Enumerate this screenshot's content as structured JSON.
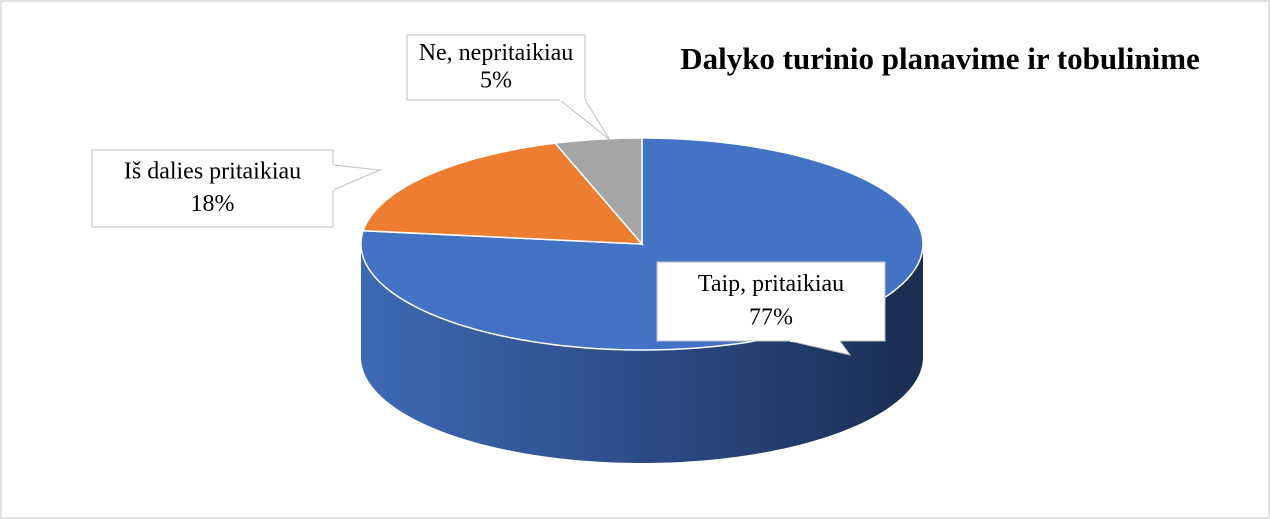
{
  "chart_data": {
    "type": "pie",
    "title": "Dalyko turinio planavime ir tobulinime",
    "categories": [
      "Taip, pritaikiau",
      "Iš dalies pritaikiau",
      "Ne, nepritaikiau"
    ],
    "values": [
      77,
      18,
      5
    ],
    "value_labels": [
      "77%",
      "18%",
      "5%"
    ],
    "colors": [
      "#4472c4",
      "#ed7d31",
      "#a5a5a5"
    ]
  }
}
